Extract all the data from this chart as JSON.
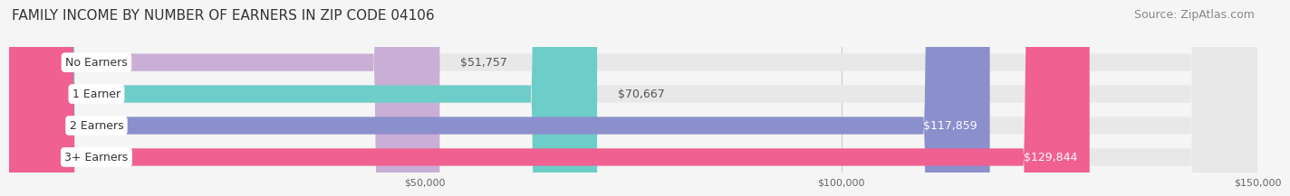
{
  "title": "FAMILY INCOME BY NUMBER OF EARNERS IN ZIP CODE 04106",
  "source": "Source: ZipAtlas.com",
  "categories": [
    "No Earners",
    "1 Earner",
    "2 Earners",
    "3+ Earners"
  ],
  "values": [
    51757,
    70667,
    117859,
    129844
  ],
  "bar_colors": [
    "#c9aed6",
    "#6dcdc8",
    "#8b8fcc",
    "#f06090"
  ],
  "label_colors": [
    "#555555",
    "#555555",
    "#ffffff",
    "#ffffff"
  ],
  "x_max": 150000,
  "x_ticks": [
    50000,
    100000,
    150000
  ],
  "x_tick_labels": [
    "$50,000",
    "$100,000",
    "$150,000"
  ],
  "background_color": "#f5f5f5",
  "bar_background_color": "#e8e8e8",
  "title_fontsize": 11,
  "source_fontsize": 9,
  "label_fontsize": 9,
  "category_fontsize": 9,
  "value_labels": [
    "$51,757",
    "$70,667",
    "$117,859",
    "$129,844"
  ]
}
